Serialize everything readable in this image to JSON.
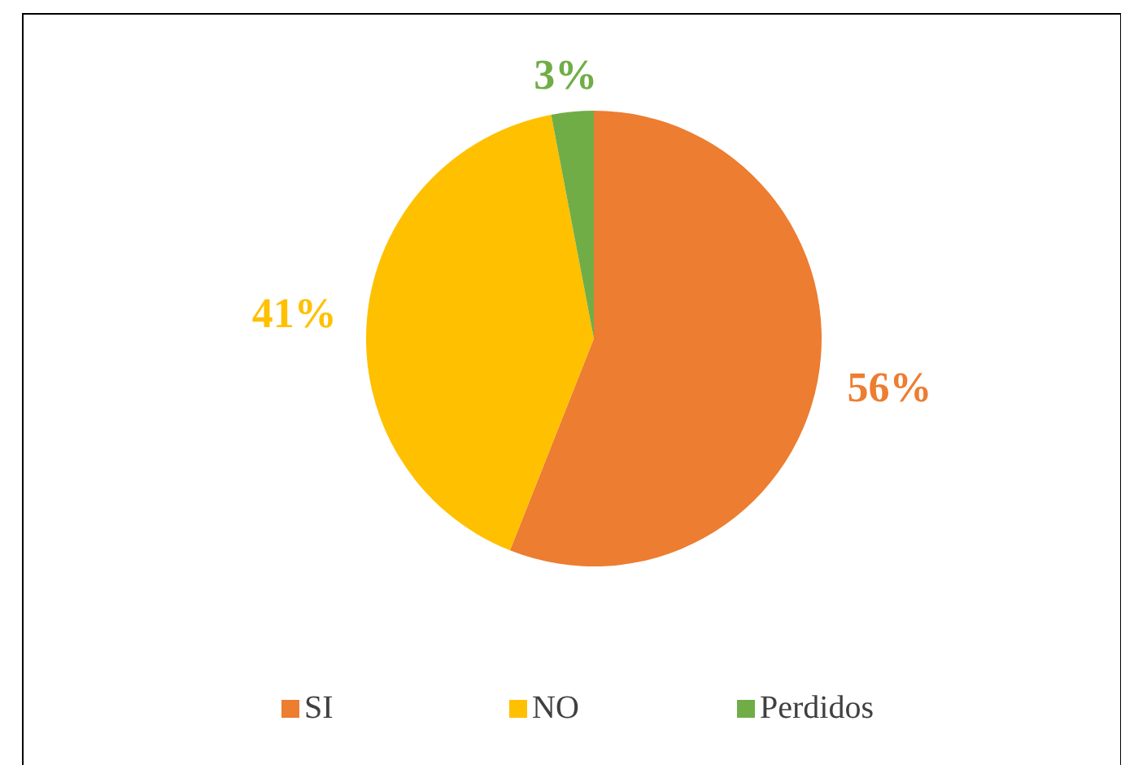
{
  "chart_data": {
    "type": "pie",
    "categories": [
      "SI",
      "NO",
      "Perdidos"
    ],
    "values": [
      56,
      41,
      3
    ],
    "colors": [
      "#ed7d31",
      "#ffc000",
      "#70ad47"
    ],
    "value_labels": [
      "56%",
      "41%",
      "3%"
    ],
    "legend": "bottom"
  }
}
